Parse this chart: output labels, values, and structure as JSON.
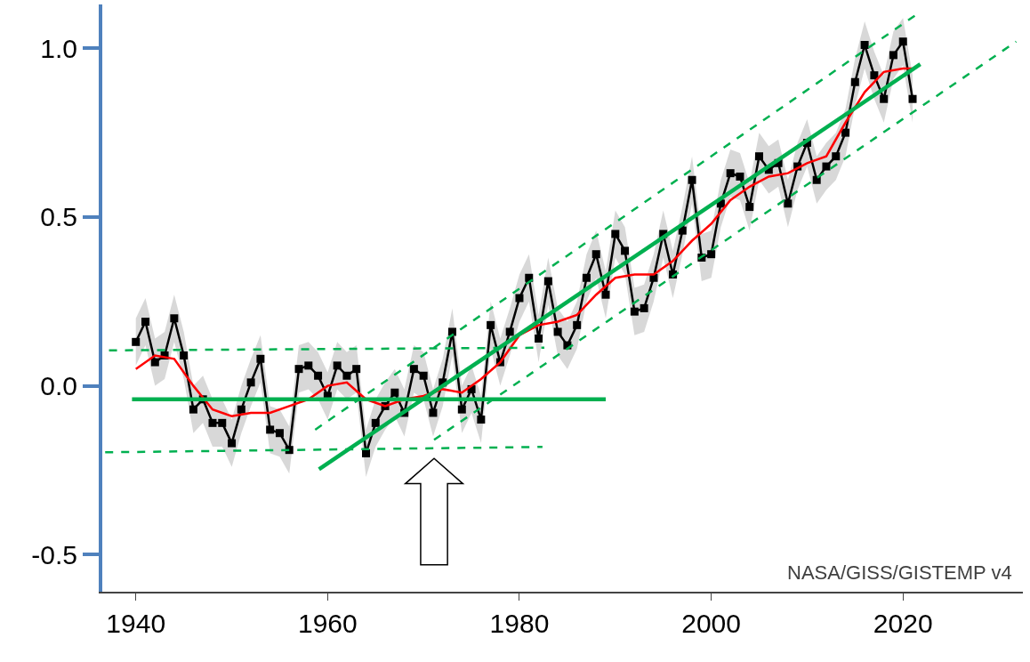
{
  "chart_data": {
    "type": "line",
    "x": [
      1940,
      1941,
      1942,
      1943,
      1944,
      1945,
      1946,
      1947,
      1948,
      1949,
      1950,
      1951,
      1952,
      1953,
      1954,
      1955,
      1956,
      1957,
      1958,
      1959,
      1960,
      1961,
      1962,
      1963,
      1964,
      1965,
      1966,
      1967,
      1968,
      1969,
      1970,
      1971,
      1972,
      1973,
      1974,
      1975,
      1976,
      1977,
      1978,
      1979,
      1980,
      1981,
      1982,
      1983,
      1984,
      1985,
      1986,
      1987,
      1988,
      1989,
      1990,
      1991,
      1992,
      1993,
      1994,
      1995,
      1996,
      1997,
      1998,
      1999,
      2000,
      2001,
      2002,
      2003,
      2004,
      2005,
      2006,
      2007,
      2008,
      2009,
      2010,
      2011,
      2012,
      2013,
      2014,
      2015,
      2016,
      2017,
      2018,
      2019,
      2020,
      2021
    ],
    "series": [
      {
        "color": "#000000",
        "marker": "square",
        "line_style": "solid",
        "values": [
          0.13,
          0.19,
          0.07,
          0.09,
          0.2,
          0.09,
          -0.07,
          -0.04,
          -0.11,
          -0.11,
          -0.17,
          -0.07,
          0.01,
          0.08,
          -0.13,
          -0.14,
          -0.19,
          0.05,
          0.06,
          0.03,
          -0.03,
          0.06,
          0.03,
          0.05,
          -0.2,
          -0.11,
          -0.06,
          -0.02,
          -0.08,
          0.05,
          0.03,
          -0.08,
          0.01,
          0.16,
          -0.07,
          -0.01,
          -0.1,
          0.18,
          0.07,
          0.16,
          0.26,
          0.32,
          0.14,
          0.31,
          0.16,
          0.12,
          0.18,
          0.32,
          0.39,
          0.27,
          0.45,
          0.4,
          0.22,
          0.23,
          0.32,
          0.45,
          0.33,
          0.46,
          0.61,
          0.38,
          0.39,
          0.54,
          0.63,
          0.62,
          0.53,
          0.68,
          0.64,
          0.66,
          0.54,
          0.65,
          0.72,
          0.61,
          0.65,
          0.68,
          0.75,
          0.9,
          1.01,
          0.92,
          0.85,
          0.98,
          1.02,
          0.85
        ],
        "lower": [
          0.06,
          0.12,
          0.0,
          0.02,
          0.13,
          0.02,
          -0.14,
          -0.11,
          -0.18,
          -0.18,
          -0.24,
          -0.14,
          -0.06,
          0.01,
          -0.2,
          -0.21,
          -0.26,
          -0.02,
          -0.01,
          -0.04,
          -0.1,
          -0.01,
          -0.04,
          -0.02,
          -0.27,
          -0.18,
          -0.13,
          -0.09,
          -0.15,
          -0.02,
          -0.04,
          -0.15,
          -0.06,
          0.09,
          -0.14,
          -0.08,
          -0.17,
          0.11,
          0.0,
          0.09,
          0.19,
          0.25,
          0.07,
          0.24,
          0.09,
          0.05,
          0.11,
          0.25,
          0.32,
          0.2,
          0.38,
          0.33,
          0.15,
          0.16,
          0.25,
          0.38,
          0.26,
          0.39,
          0.54,
          0.31,
          0.32,
          0.47,
          0.56,
          0.55,
          0.46,
          0.61,
          0.57,
          0.59,
          0.47,
          0.58,
          0.65,
          0.54,
          0.58,
          0.61,
          0.68,
          0.83,
          0.94,
          0.85,
          0.78,
          0.91,
          0.95,
          0.78
        ],
        "upper": [
          0.2,
          0.26,
          0.14,
          0.16,
          0.27,
          0.16,
          0.0,
          0.03,
          -0.04,
          -0.04,
          -0.1,
          0.0,
          0.08,
          0.15,
          -0.06,
          -0.07,
          -0.12,
          0.12,
          0.13,
          0.1,
          0.04,
          0.13,
          0.1,
          0.12,
          -0.13,
          -0.04,
          0.01,
          0.05,
          -0.01,
          0.12,
          0.1,
          -0.01,
          0.08,
          0.23,
          0.0,
          0.06,
          -0.03,
          0.25,
          0.14,
          0.23,
          0.33,
          0.39,
          0.21,
          0.38,
          0.23,
          0.19,
          0.25,
          0.39,
          0.46,
          0.34,
          0.52,
          0.47,
          0.29,
          0.3,
          0.39,
          0.52,
          0.4,
          0.53,
          0.68,
          0.45,
          0.46,
          0.61,
          0.7,
          0.69,
          0.6,
          0.75,
          0.71,
          0.73,
          0.61,
          0.72,
          0.79,
          0.68,
          0.72,
          0.75,
          0.82,
          0.97,
          1.08,
          0.99,
          0.92,
          1.05,
          1.09,
          0.92
        ]
      },
      {
        "color": "#ff0000",
        "marker": "none",
        "line_style": "solid",
        "x": [
          1940,
          1942,
          1944,
          1946,
          1948,
          1950,
          1952,
          1954,
          1956,
          1958,
          1960,
          1962,
          1964,
          1966,
          1968,
          1970,
          1972,
          1974,
          1976,
          1978,
          1980,
          1982,
          1984,
          1986,
          1988,
          1990,
          1992,
          1994,
          1996,
          1998,
          2000,
          2002,
          2004,
          2006,
          2008,
          2010,
          2012,
          2014,
          2016,
          2018,
          2020,
          2021
        ],
        "values": [
          0.05,
          0.09,
          0.08,
          0.0,
          -0.07,
          -0.09,
          -0.08,
          -0.08,
          -0.06,
          -0.04,
          0.0,
          0.01,
          -0.04,
          -0.06,
          -0.04,
          -0.03,
          -0.01,
          -0.02,
          0.02,
          0.07,
          0.15,
          0.18,
          0.19,
          0.21,
          0.27,
          0.32,
          0.33,
          0.33,
          0.37,
          0.43,
          0.48,
          0.55,
          0.59,
          0.62,
          0.63,
          0.66,
          0.68,
          0.78,
          0.87,
          0.93,
          0.94,
          0.94
        ]
      },
      {
        "color": "#00b050",
        "marker": "none",
        "line_style": "solid",
        "x": [
          1939.6,
          1989
        ],
        "values": [
          -0.04,
          -0.04
        ]
      },
      {
        "color": "#00b050",
        "marker": "none",
        "line_style": "dashed",
        "x": [
          1937.2,
          1982.6
        ],
        "values": [
          0.105,
          0.113
        ]
      },
      {
        "color": "#00b050",
        "marker": "none",
        "line_style": "dashed",
        "x": [
          1936.8,
          1982.4
        ],
        "values": [
          -0.197,
          -0.181
        ]
      },
      {
        "color": "#00b050",
        "marker": "none",
        "line_style": "solid",
        "x": [
          1959.1,
          2021.8
        ],
        "values": [
          -0.247,
          0.953
        ]
      },
      {
        "color": "#00b050",
        "marker": "none",
        "line_style": "dashed",
        "x": [
          1958.7,
          2021.4
        ],
        "values": [
          -0.13,
          1.1
        ]
      },
      {
        "color": "#00b050",
        "marker": "none",
        "line_style": "dashed",
        "x": [
          1971.1,
          2031.8
        ],
        "values": [
          -0.16,
          1.02
        ]
      }
    ],
    "xlim": [
      1936.5,
      2032.5
    ],
    "xticks": [
      1940,
      1960,
      1980,
      2000,
      2020
    ],
    "ylim": [
      -0.61,
      1.13
    ],
    "yticks": [
      {
        "value": 1.0,
        "label": "1.0"
      },
      {
        "value": 0.5,
        "label": "0.5"
      },
      {
        "value": 0.0,
        "label": "0.0"
      },
      {
        "value": -0.5,
        "label": "-0.5"
      }
    ],
    "annotations": [
      "NASA/GISS/GISTEMP v4"
    ]
  }
}
